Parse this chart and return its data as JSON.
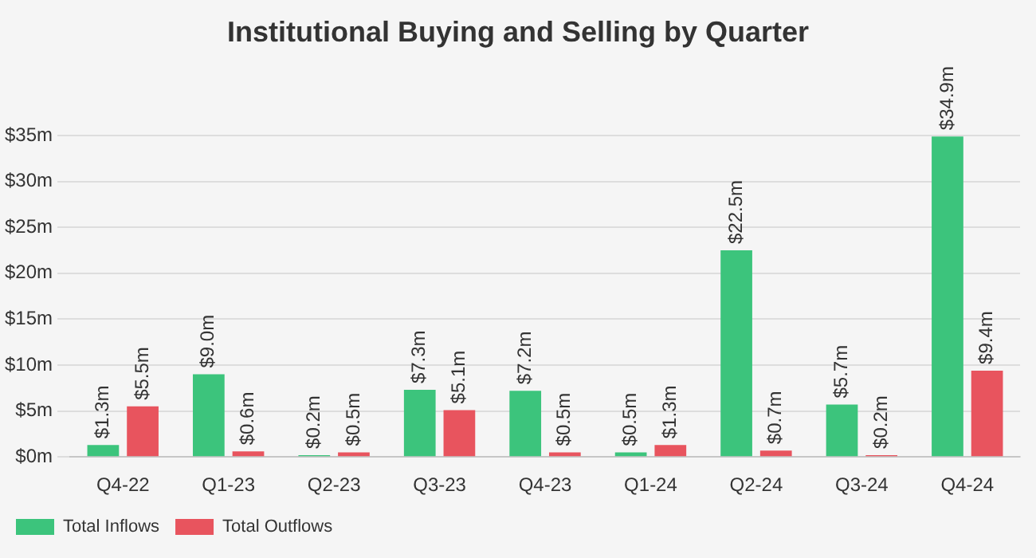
{
  "chart_data": {
    "type": "bar",
    "title": "Institutional Buying and Selling by Quarter",
    "categories": [
      "Q4-22",
      "Q1-23",
      "Q2-23",
      "Q3-23",
      "Q4-23",
      "Q1-24",
      "Q2-24",
      "Q3-24",
      "Q4-24"
    ],
    "series": [
      {
        "name": "Total Inflows",
        "color": "#3cc47c",
        "values": [
          1.3,
          9.0,
          0.2,
          7.3,
          7.2,
          0.5,
          22.5,
          5.7,
          34.9
        ],
        "value_labels": [
          "$1.3m",
          "$9.0m",
          "$0.2m",
          "$7.3m",
          "$7.2m",
          "$0.5m",
          "$22.5m",
          "$5.7m",
          "$34.9m"
        ]
      },
      {
        "name": "Total Outflows",
        "color": "#e8545e",
        "values": [
          5.5,
          0.6,
          0.5,
          5.1,
          0.5,
          1.3,
          0.7,
          0.2,
          9.4
        ],
        "value_labels": [
          "$5.5m",
          "$0.6m",
          "$0.5m",
          "$5.1m",
          "$0.5m",
          "$1.3m",
          "$0.7m",
          "$0.2m",
          "$9.4m"
        ]
      }
    ],
    "ylim": [
      0,
      35
    ],
    "yticks": [
      {
        "value": 0,
        "label": "$0m"
      },
      {
        "value": 5,
        "label": "$5m"
      },
      {
        "value": 10,
        "label": "$10m"
      },
      {
        "value": 15,
        "label": "$15m"
      },
      {
        "value": 20,
        "label": "$20m"
      },
      {
        "value": 25,
        "label": "$25m"
      },
      {
        "value": 30,
        "label": "$30m"
      },
      {
        "value": 35,
        "label": "$35m"
      }
    ],
    "grid": "y",
    "legend": "bottom left"
  }
}
